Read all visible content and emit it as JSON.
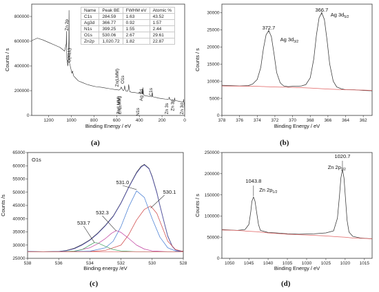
{
  "chart_data": [
    {
      "panel_label": "(a)",
      "type": "line",
      "xlabel": "Binding Energy / eV",
      "ylabel": "Counts / s",
      "xlim": [
        1350,
        0
      ],
      "ylim": [
        0,
        900000
      ],
      "xticks": [
        1200,
        1000,
        800,
        600,
        400,
        200,
        0
      ],
      "yticks": [
        0,
        200000,
        400000,
        600000,
        800000
      ],
      "series": [
        {
          "x": [
            1350,
            1300,
            1250,
            1200,
            1150,
            1100,
            1060,
            1045,
            1043.8,
            1040,
            1030,
            1022,
            1020.7,
            1018,
            1005,
            995,
            990,
            980,
            960,
            940,
            900,
            860,
            820,
            780,
            740,
            700,
            660,
            620,
            600,
            580,
            565,
            560,
            550,
            545,
            540,
            533,
            530,
            520,
            505,
            498,
            494,
            492,
            485,
            470,
            440,
            420,
            405,
            400,
            395,
            385,
            374,
            372.7,
            370,
            368,
            366.7,
            364,
            355,
            340,
            320,
            300,
            290,
            286,
            284.6,
            282,
            270,
            250,
            230,
            200,
            170,
            150,
            140,
            137,
            130,
            110,
            95,
            90,
            88,
            85,
            70,
            50,
            30,
            20,
            12,
            10,
            8,
            4,
            0
          ],
          "y": [
            605000,
            625000,
            610000,
            590000,
            570000,
            550000,
            520000,
            580000,
            680000,
            450000,
            400000,
            600000,
            850000,
            430000,
            380000,
            340000,
            360000,
            320000,
            300000,
            280000,
            265000,
            250000,
            240000,
            232000,
            228000,
            222000,
            216000,
            210000,
            208000,
            205000,
            215000,
            230000,
            210000,
            202000,
            200000,
            212000,
            240000,
            198000,
            195000,
            210000,
            250000,
            235000,
            192000,
            188000,
            185000,
            182000,
            178000,
            190000,
            178000,
            175000,
            180000,
            215000,
            178000,
            172000,
            225000,
            168000,
            162000,
            158000,
            155000,
            152000,
            150000,
            162000,
            185000,
            152000,
            148000,
            145000,
            140000,
            136000,
            132000,
            130000,
            132000,
            148000,
            128000,
            124000,
            122000,
            124000,
            142000,
            120000,
            118000,
            114000,
            110000,
            108000,
            112000,
            130000,
            108000,
            100000,
            40000
          ]
        }
      ],
      "annotations": [
        "Zn 2p",
        "O(KLL)",
        "Zn(LMM)",
        "Zn(LMM)",
        "Zn(LMM)",
        "O1s",
        "N1s",
        "Ag 3d",
        "C1s",
        "Zn 3s",
        "Zn 3p",
        "Zn 3d"
      ],
      "table": {
        "headers": [
          "Name",
          "Peak BE",
          "FWHM eV",
          "Atomic %"
        ],
        "rows": [
          [
            "C1s",
            "284.59",
            "1.63",
            "43.52"
          ],
          [
            "Ag3d",
            "366.77",
            "0.92",
            "1.57"
          ],
          [
            "N1s",
            "399.25",
            "1.55",
            "2.44"
          ],
          [
            "O1s",
            "530.06",
            "2.67",
            "29.61"
          ],
          [
            "Zn2p",
            "1,020.72",
            "1.82",
            "22.87"
          ]
        ]
      }
    },
    {
      "panel_label": "(b)",
      "type": "line",
      "xlabel": "Binding Energy / eV",
      "ylabel": "Counts / s",
      "xlim": [
        378,
        361
      ],
      "ylim": [
        0,
        32500
      ],
      "xticks": [
        378,
        376,
        374,
        372,
        370,
        368,
        366,
        364,
        362
      ],
      "yticks": [
        0,
        5000,
        10000,
        15000,
        20000,
        25000,
        30000
      ],
      "series": [
        {
          "color": "#333333",
          "x": [
            378,
            377,
            376,
            375,
            374.5,
            374,
            373.6,
            373.3,
            373,
            372.7,
            372.4,
            372.1,
            371.8,
            371.4,
            371,
            370.5,
            370,
            369.5,
            369,
            368.5,
            368,
            367.6,
            367.3,
            367,
            366.7,
            366.4,
            366.1,
            365.8,
            365.4,
            365,
            364.5,
            364,
            363,
            362,
            361
          ],
          "y": [
            8800,
            8700,
            8600,
            8700,
            9200,
            10500,
            14000,
            19500,
            23500,
            24800,
            23000,
            18000,
            12500,
            9500,
            8600,
            8400,
            8500,
            8500,
            8600,
            9000,
            11000,
            16500,
            23500,
            28500,
            30000,
            28000,
            22000,
            15000,
            10000,
            8300,
            7800,
            7500,
            7500,
            7300,
            7200
          ]
        },
        {
          "color": "#e06060",
          "x": [
            378,
            374,
            373,
            372,
            370,
            368,
            366,
            365,
            364,
            362,
            361
          ],
          "y": [
            8600,
            8500,
            8400,
            8300,
            8200,
            8000,
            7700,
            7600,
            7500,
            7400,
            7300
          ]
        }
      ],
      "annotations": [
        {
          "text": "372.7",
          "x": 372.7
        },
        {
          "text": "366.7",
          "x": 366.7
        },
        {
          "text": "Ag 3d",
          "sub": "3/2"
        },
        {
          "text": "Ag 3d",
          "sub": "5/2"
        }
      ]
    },
    {
      "panel_label": "(c)",
      "type": "line",
      "xlabel": "Binding energy /eV",
      "ylabel": "Counts /s",
      "title": "O1s",
      "xlim": [
        538,
        528
      ],
      "ylim": [
        25000,
        65000
      ],
      "xticks": [
        538,
        536,
        534,
        532,
        530,
        528
      ],
      "yticks": [
        25000,
        30000,
        35000,
        40000,
        45000,
        50000,
        55000,
        60000,
        65000
      ],
      "series": [
        {
          "color": "#2a2a2a",
          "x": [
            538,
            537,
            536,
            535.5,
            535,
            534.5,
            534,
            533.5,
            533,
            532.5,
            532,
            531.5,
            531,
            530.7,
            530.5,
            530.2,
            530,
            529.7,
            529.5,
            529.2,
            529,
            528.7,
            528.5,
            528.2,
            528
          ],
          "y": [
            27600,
            27500,
            27600,
            28000,
            28800,
            30200,
            32000,
            34500,
            37500,
            41000,
            46000,
            52000,
            57500,
            59800,
            60500,
            59000,
            56000,
            50000,
            45000,
            38000,
            33500,
            29500,
            28200,
            27800,
            27700
          ]
        },
        {
          "color": "#6060c0",
          "x": [
            538,
            537,
            536,
            535.5,
            535,
            534.5,
            534,
            533.5,
            533,
            532.5,
            532,
            531.5,
            531,
            530.7,
            530.5,
            530.2,
            530,
            529.7,
            529.5,
            529.2,
            529,
            528.7,
            528.5,
            528.2,
            528
          ],
          "y": [
            27600,
            27500,
            27600,
            27900,
            28600,
            30000,
            31800,
            34300,
            37300,
            40800,
            45800,
            51800,
            57200,
            59500,
            60300,
            58800,
            55700,
            49700,
            44800,
            37800,
            33300,
            29400,
            28100,
            27700,
            27600
          ]
        },
        {
          "color": "#d04a4a",
          "x": [
            538,
            537,
            536,
            535,
            534,
            533,
            532,
            531.5,
            531,
            530.5,
            530.1,
            529.7,
            529.3,
            529,
            528.5,
            528
          ],
          "y": [
            27500,
            27500,
            27500,
            27500,
            27600,
            28000,
            30000,
            34000,
            39500,
            43500,
            44800,
            42000,
            36000,
            31500,
            28300,
            27600
          ]
        },
        {
          "color": "#4a7fd4",
          "x": [
            538,
            536,
            534,
            533,
            532.5,
            532,
            531.5,
            531,
            530.5,
            530,
            529.5,
            529,
            528.5,
            528
          ],
          "y": [
            27500,
            27500,
            27700,
            29000,
            31500,
            37000,
            44500,
            50500,
            48000,
            40000,
            33000,
            29000,
            27800,
            27500
          ]
        },
        {
          "color": "#c040a0",
          "x": [
            538,
            536,
            535,
            534,
            533.5,
            533,
            532.6,
            532.3,
            532,
            531.5,
            531,
            530.5,
            530,
            529,
            528
          ],
          "y": [
            27500,
            27500,
            27700,
            29000,
            30500,
            32500,
            34500,
            35500,
            34800,
            32500,
            30000,
            28500,
            27800,
            27500,
            27500
          ]
        },
        {
          "color": "#40a060",
          "x": [
            538,
            536,
            535,
            534.5,
            534,
            533.7,
            533.4,
            533,
            532.5,
            532,
            531,
            530,
            528
          ],
          "y": [
            27500,
            27500,
            27700,
            28300,
            30000,
            31000,
            30600,
            29500,
            28300,
            27800,
            27500,
            27500,
            27500
          ]
        },
        {
          "color": "#e07070",
          "x": [
            538,
            536,
            534,
            532,
            530,
            528
          ],
          "y": [
            27500,
            27500,
            27500,
            27500,
            27500,
            27500
          ]
        }
      ],
      "annotations": [
        {
          "text": "531.0",
          "x": 531.0
        },
        {
          "text": "530.1",
          "x": 530.1
        },
        {
          "text": "532.3",
          "x": 532.3
        },
        {
          "text": "533.7",
          "x": 533.7
        }
      ]
    },
    {
      "panel_label": "(d)",
      "type": "line",
      "xlabel": "Binding Energy / eV",
      "ylabel": "Counts / s",
      "xlim": [
        1052,
        1013
      ],
      "ylim": [
        0,
        250000
      ],
      "xticks": [
        1050,
        1045,
        1040,
        1035,
        1030,
        1025,
        1020,
        1015
      ],
      "yticks": [
        0,
        50000,
        100000,
        150000,
        200000,
        250000
      ],
      "series": [
        {
          "color": "#333333",
          "x": [
            1052,
            1050,
            1048,
            1046,
            1045,
            1044.5,
            1044.2,
            1043.8,
            1043.4,
            1043,
            1042.5,
            1042,
            1040,
            1038,
            1035,
            1032,
            1030,
            1028,
            1025,
            1023,
            1022,
            1021.5,
            1021.1,
            1020.7,
            1020.3,
            1019.9,
            1019.5,
            1019,
            1018,
            1016,
            1013
          ],
          "y": [
            68000,
            67000,
            66000,
            68000,
            80000,
            110000,
            135000,
            145000,
            135000,
            110000,
            80000,
            66000,
            61000,
            60000,
            58000,
            57000,
            57500,
            58000,
            60000,
            65000,
            95000,
            145000,
            190000,
            210000,
            190000,
            140000,
            90000,
            62000,
            52000,
            48000,
            46000
          ]
        },
        {
          "color": "#e06060",
          "x": [
            1052,
            1048,
            1045,
            1043,
            1040,
            1035,
            1030,
            1025,
            1022,
            1020,
            1018,
            1015,
            1013
          ],
          "y": [
            67000,
            66000,
            64000,
            63000,
            60000,
            57000,
            55000,
            53000,
            51000,
            50000,
            48000,
            47000,
            46000
          ]
        }
      ],
      "annotations": [
        {
          "text": "1043.8",
          "x": 1043.8
        },
        {
          "text": "1020.7",
          "x": 1020.7
        },
        {
          "text": "Zn 2p",
          "sub": "1/2"
        },
        {
          "text": "Zn 2p",
          "sub": "3/2"
        }
      ]
    }
  ]
}
